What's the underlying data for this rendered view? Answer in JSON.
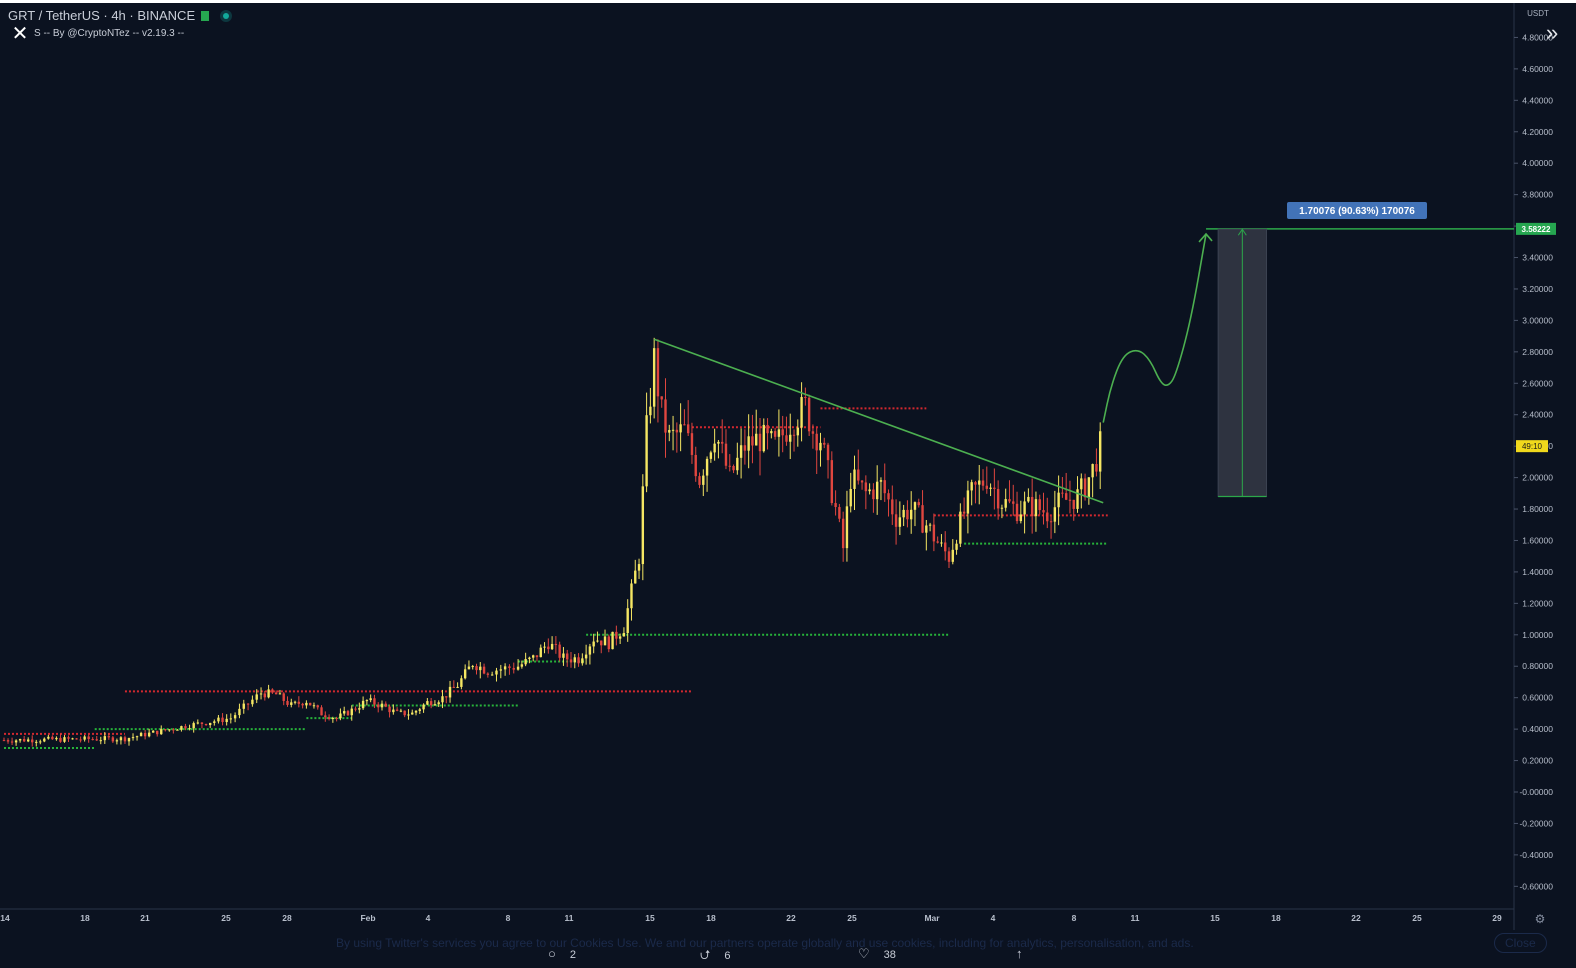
{
  "header": {
    "symbol": "GRT / TetherUS · 4h · BINANCE",
    "indicator": "S -- By @CryptoNTez -- v2.19.3 --"
  },
  "chart_data": {
    "type": "line",
    "x_ticks": [
      "14",
      "18",
      "21",
      "25",
      "28",
      "Feb",
      "4",
      "8",
      "11",
      "15",
      "18",
      "22",
      "25",
      "Mar",
      "4",
      "8",
      "11",
      "15",
      "18",
      "22",
      "25",
      "29"
    ],
    "y_ticks": [
      "4.80000",
      "4.60000",
      "4.40000",
      "4.20000",
      "4.00000",
      "3.80000",
      "3.60000",
      "3.40000",
      "3.20000",
      "3.00000",
      "2.80000",
      "2.60000",
      "2.40000",
      "2.20000",
      "2.00000",
      "1.80000",
      "1.60000",
      "1.40000",
      "1.20000",
      "1.00000",
      "0.80000",
      "0.60000",
      "0.40000",
      "0.20000",
      "-0.00000",
      "-0.20000",
      "-0.40000",
      "-0.60000"
    ],
    "y_unit": "USDT",
    "ylim": [
      -0.7,
      5.0
    ],
    "price_path": [
      [
        0,
        0.33
      ],
      [
        8,
        0.34
      ],
      [
        12,
        0.42
      ],
      [
        15,
        0.47
      ],
      [
        17,
        0.63
      ],
      [
        18,
        0.62
      ],
      [
        19,
        0.55
      ],
      [
        20,
        0.58
      ],
      [
        21,
        0.5
      ],
      [
        22,
        0.47
      ],
      [
        23,
        0.52
      ],
      [
        24,
        0.58
      ],
      [
        25,
        0.55
      ],
      [
        26,
        0.5
      ],
      [
        27,
        0.5
      ],
      [
        28,
        0.57
      ],
      [
        29,
        0.6
      ],
      [
        30,
        0.68
      ],
      [
        31,
        0.82
      ],
      [
        32,
        0.77
      ],
      [
        34,
        0.8
      ],
      [
        35,
        0.85
      ],
      [
        36,
        0.95
      ],
      [
        37,
        0.85
      ],
      [
        38,
        0.85
      ],
      [
        39,
        0.98
      ],
      [
        40,
        0.95
      ],
      [
        41,
        1.05
      ],
      [
        42,
        1.5
      ],
      [
        42.5,
        2.3
      ],
      [
        43,
        2.75
      ],
      [
        43.5,
        2.4
      ],
      [
        44,
        2.25
      ],
      [
        45,
        2.3
      ],
      [
        46,
        2.0
      ],
      [
        47,
        2.3
      ],
      [
        48,
        2.0
      ],
      [
        49,
        2.2
      ],
      [
        50,
        2.25
      ],
      [
        51,
        2.2
      ],
      [
        52,
        2.35
      ],
      [
        53,
        2.45
      ],
      [
        53.5,
        2.3
      ],
      [
        54,
        2.25
      ],
      [
        55,
        1.8
      ],
      [
        55.5,
        1.55
      ],
      [
        56,
        2.0
      ],
      [
        57,
        1.9
      ],
      [
        58,
        1.95
      ],
      [
        59,
        1.75
      ],
      [
        60,
        1.8
      ],
      [
        61,
        1.7
      ],
      [
        62,
        1.55
      ],
      [
        62.5,
        1.5
      ],
      [
        63,
        1.65
      ],
      [
        64,
        1.9
      ],
      [
        65,
        2.0
      ],
      [
        66,
        1.85
      ],
      [
        67,
        1.8
      ],
      [
        68,
        1.82
      ],
      [
        69,
        1.78
      ],
      [
        70,
        1.85
      ],
      [
        71,
        1.88
      ],
      [
        71.5,
        1.95
      ],
      [
        72,
        2.05
      ],
      [
        72.5,
        2.2
      ]
    ],
    "trendline": [
      [
        43,
        2.88
      ],
      [
        72.7,
        1.84
      ]
    ],
    "projection": [
      [
        72.7,
        2.35
      ],
      [
        73.2,
        2.58
      ],
      [
        74,
        2.78
      ],
      [
        75,
        2.82
      ],
      [
        75.8,
        2.75
      ],
      [
        76.5,
        2.6
      ],
      [
        77,
        2.58
      ],
      [
        77.5,
        2.65
      ],
      [
        78.5,
        3.0
      ],
      [
        79.5,
        3.55
      ]
    ],
    "target_level": 3.58222,
    "current_price": 2.2,
    "timer": "49:10",
    "target_label": "3.58222",
    "measurement": {
      "x_start": 80.3,
      "x_end": 83.5,
      "y_low": 1.88,
      "y_high": 3.58,
      "label": "1.70076 (90.63%) 170076"
    },
    "support_levels": [
      {
        "x": [
          0,
          6
        ],
        "y": 0.28
      },
      {
        "x": [
          6,
          20
        ],
        "y": 0.4
      },
      {
        "x": [
          20,
          23
        ],
        "y": 0.47
      },
      {
        "x": [
          23,
          34
        ],
        "y": 0.55
      },
      {
        "x": [
          34,
          38.5
        ],
        "y": 0.83
      },
      {
        "x": [
          38.5,
          62.5
        ],
        "y": 1.0
      },
      {
        "x": [
          63.5,
          73
        ],
        "y": 1.58
      }
    ],
    "resistance_levels": [
      {
        "x": [
          0,
          8
        ],
        "y": 0.37
      },
      {
        "x": [
          8,
          45.5
        ],
        "y": 0.64
      },
      {
        "x": [
          45.5,
          54
        ],
        "y": 2.32
      },
      {
        "x": [
          54,
          61
        ],
        "y": 2.44
      },
      {
        "x": [
          61.5,
          73
        ],
        "y": 1.76
      }
    ]
  },
  "footer": {
    "cookie_text": "By using Twitter's services you agree to our Cookies Use. We and our partners operate globally and use cookies, including for analytics, personalisation, and ads.",
    "close_label": "Close",
    "reply_count": "2",
    "retweet_count": "6",
    "like_count": "38"
  },
  "icons": {
    "close": "close-icon",
    "expand": "double-chevron-right-icon",
    "settings": "gear-icon"
  },
  "colors": {
    "background": "#0b1220",
    "up": "#f5e663",
    "down": "#e0463f",
    "trend": "#4caf50",
    "support": "#27b33a",
    "resistance": "#d3282f",
    "target": "#2ca84a"
  }
}
